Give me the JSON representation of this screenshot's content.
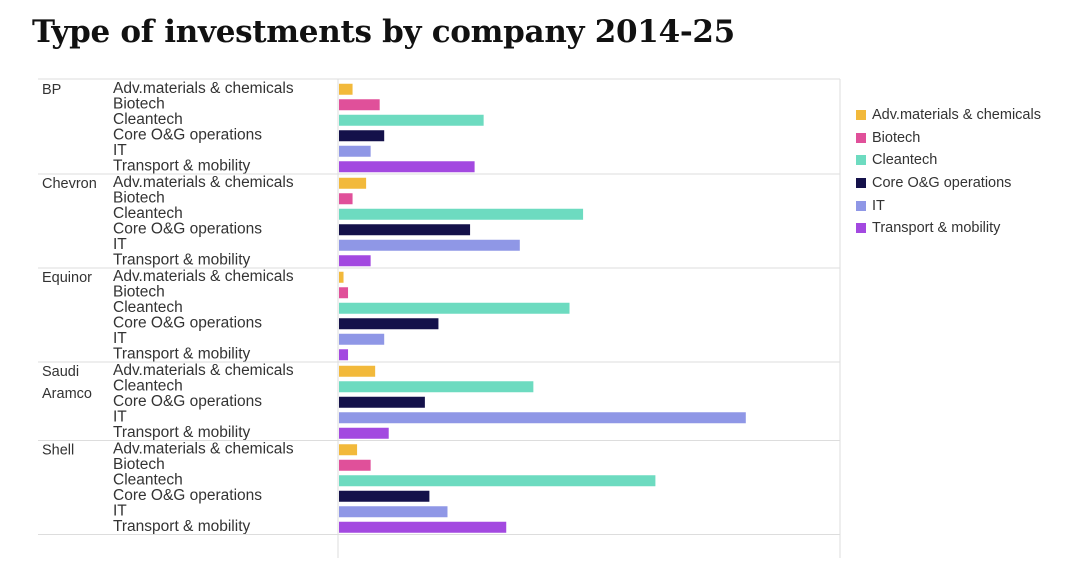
{
  "title": "Type of investments by company 2014-25",
  "colors": {
    "Adv.materials & chemicals": "#f2b93b",
    "Biotech": "#e0509a",
    "Cleantech": "#6ddbc0",
    "Core O&G operations": "#14114a",
    "IT": "#8f97e6",
    "Transport & mobility": "#a349e0"
  },
  "legend": [
    {
      "label": "Adv.materials & chemicals",
      "color": "#f2b93b"
    },
    {
      "label": "Biotech",
      "color": "#e0509a"
    },
    {
      "label": "Cleantech",
      "color": "#6ddbc0"
    },
    {
      "label": "Core O&G operations",
      "color": "#14114a"
    },
    {
      "label": "IT",
      "color": "#8f97e6"
    },
    {
      "label": "Transport & mobility",
      "color": "#a349e0"
    }
  ],
  "chart_data": {
    "type": "bar",
    "orientation": "horizontal",
    "grouped_by": "company",
    "title": "Type of investments by company 2014-25",
    "xlabel": "",
    "ylabel": "",
    "xlim": [
      0,
      100
    ],
    "legend_position": "right",
    "groups": [
      {
        "company": "BP",
        "bars": [
          {
            "category": "Adv.materials & chemicals",
            "value": 3
          },
          {
            "category": "Biotech",
            "value": 9
          },
          {
            "category": "Cleantech",
            "value": 32
          },
          {
            "category": "Core O&G operations",
            "value": 10
          },
          {
            "category": "IT",
            "value": 7
          },
          {
            "category": "Transport & mobility",
            "value": 30
          }
        ]
      },
      {
        "company": "Chevron",
        "bars": [
          {
            "category": "Adv.materials & chemicals",
            "value": 6
          },
          {
            "category": "Biotech",
            "value": 3
          },
          {
            "category": "Cleantech",
            "value": 54
          },
          {
            "category": "Core O&G operations",
            "value": 29
          },
          {
            "category": "IT",
            "value": 40
          },
          {
            "category": "Transport & mobility",
            "value": 7
          }
        ]
      },
      {
        "company": "Equinor",
        "bars": [
          {
            "category": "Adv.materials & chemicals",
            "value": 1
          },
          {
            "category": "Biotech",
            "value": 2
          },
          {
            "category": "Cleantech",
            "value": 51
          },
          {
            "category": "Core O&G operations",
            "value": 22
          },
          {
            "category": "IT",
            "value": 10
          },
          {
            "category": "Transport & mobility",
            "value": 2
          }
        ]
      },
      {
        "company": "Saudi Aramco",
        "bars": [
          {
            "category": "Adv.materials & chemicals",
            "value": 8
          },
          {
            "category": "Cleantech",
            "value": 43
          },
          {
            "category": "Core O&G operations",
            "value": 19
          },
          {
            "category": "IT",
            "value": 90
          },
          {
            "category": "Transport & mobility",
            "value": 11
          }
        ]
      },
      {
        "company": "Shell",
        "bars": [
          {
            "category": "Adv.materials & chemicals",
            "value": 4
          },
          {
            "category": "Biotech",
            "value": 7
          },
          {
            "category": "Cleantech",
            "value": 70
          },
          {
            "category": "Core O&G operations",
            "value": 20
          },
          {
            "category": "IT",
            "value": 24
          },
          {
            "category": "Transport & mobility",
            "value": 37
          }
        ]
      }
    ]
  }
}
